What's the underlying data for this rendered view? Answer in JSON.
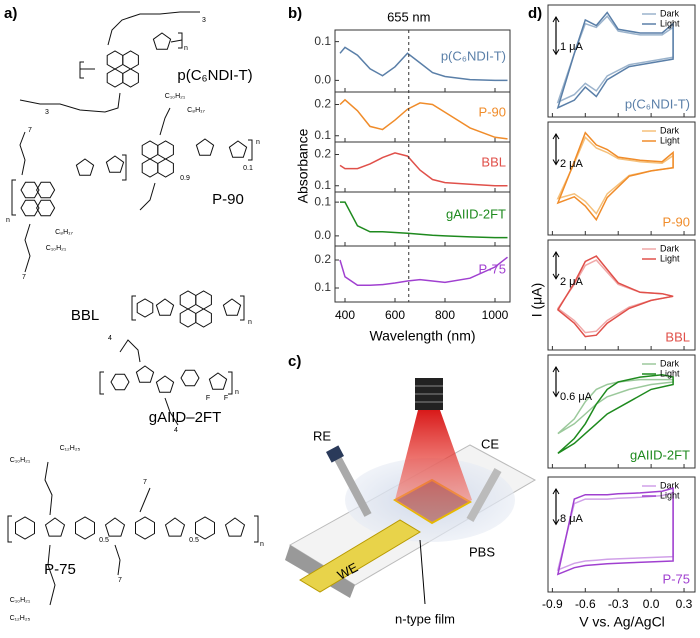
{
  "panel_labels": [
    "a)",
    "b)",
    "c)",
    "d)"
  ],
  "structures": [
    {
      "name": "p(C₆NDI-T)",
      "labels": [
        "3",
        "n",
        "3"
      ]
    },
    {
      "name": "P-90",
      "labels": [
        "7",
        "C₁₀H₂₁",
        "C₈H₁₇",
        "0.9",
        "0.1",
        "n",
        "C₈H₁₇",
        "C₁₀H₂₁",
        "7",
        "n"
      ]
    },
    {
      "name": "BBL",
      "labels": [
        "n"
      ]
    },
    {
      "name": "gAIID–2FT",
      "labels": [
        "4",
        "F",
        "F",
        "n",
        "4"
      ]
    },
    {
      "name": "P-75",
      "labels": [
        "C₁₀H₂₁",
        "C₁₂H₂₅",
        "7",
        "0.5",
        "0.5",
        "n",
        "C₁₀H₂₁",
        "C₁₂H₂₅",
        "7"
      ]
    }
  ],
  "schematic": {
    "labels": [
      "RE",
      "CE",
      "WE",
      "PBS",
      "n-type film"
    ]
  },
  "chart_data": [
    {
      "type": "line",
      "xlabel": "Wavelength (nm)",
      "ylabel": "Absorbance",
      "xlim": [
        360,
        1060
      ],
      "xticks": [
        400,
        600,
        800,
        1000
      ],
      "vline": {
        "value": 655,
        "label": "655 nm"
      },
      "x": [
        380,
        400,
        450,
        500,
        550,
        600,
        650,
        700,
        750,
        800,
        900,
        1000,
        1050
      ],
      "panels": [
        {
          "ylim": [
            -0.03,
            0.13
          ],
          "yticks": [
            {
              "value": 0,
              "label": "0.0"
            },
            0.1
          ],
          "series": [
            {
              "name": "p(C₆NDI-T)",
              "color": "#5a7fa8",
              "values": [
                0.07,
                0.085,
                0.065,
                0.03,
                0.012,
                0.035,
                0.07,
                0.045,
                0.02,
                0.01,
                0.002,
                0.0,
                0.0
              ]
            }
          ]
        },
        {
          "ylim": [
            0.08,
            0.24
          ],
          "yticks": [
            0.1,
            0.2
          ],
          "series": [
            {
              "name": "P-90",
              "color": "#f08c2a",
              "values": [
                0.2,
                0.215,
                0.18,
                0.13,
                0.12,
                0.15,
                0.185,
                0.205,
                0.2,
                0.175,
                0.125,
                0.095,
                0.09
              ]
            }
          ]
        },
        {
          "ylim": [
            0.08,
            0.24
          ],
          "yticks": [
            0.1,
            0.2
          ],
          "series": [
            {
              "name": "BBL",
              "color": "#e0504a",
              "values": [
                0.165,
                0.155,
                0.155,
                0.17,
                0.19,
                0.205,
                0.195,
                0.15,
                0.12,
                0.11,
                0.105,
                0.1,
                0.1
              ]
            }
          ]
        },
        {
          "ylim": [
            -0.03,
            0.13
          ],
          "yticks": [
            {
              "value": 0,
              "label": "0.0"
            },
            0.1
          ],
          "series": [
            {
              "name": "gAIID-2FT",
              "color": "#1e8a1e",
              "values": [
                0.1,
                0.1,
                0.03,
                0.012,
                0.012,
                0.01,
                0.008,
                0.005,
                0.002,
                0.0,
                -0.003,
                -0.005,
                -0.005
              ]
            }
          ]
        },
        {
          "ylim": [
            0.05,
            0.25
          ],
          "yticks": [
            0.1,
            0.2
          ],
          "series": [
            {
              "name": "P-75",
              "color": "#a040d0",
              "values": [
                0.2,
                0.14,
                0.11,
                0.11,
                0.112,
                0.118,
                0.125,
                0.13,
                0.125,
                0.12,
                0.135,
                0.175,
                0.21
              ]
            }
          ]
        }
      ]
    },
    {
      "type": "cv",
      "xlabel": "V vs. Ag/AgCl",
      "ylabel": "I (μA)",
      "xlim": [
        -0.94,
        0.4
      ],
      "xticks": [
        -0.9,
        -0.6,
        -0.3,
        {
          "value": 0,
          "label": "0.0"
        },
        0.3
      ],
      "panels": [
        {
          "name": "p(C₆NDI-T)",
          "color": "#5a7fa8",
          "ylim": [
            -1.9,
            1.1
          ],
          "scale_bar": {
            "value": 1,
            "label": "1 μA"
          },
          "series": [
            {
              "name": "Dark",
              "color": "#9bb3cc",
              "x": [
                0.2,
                0.0,
                -0.2,
                -0.4,
                -0.5,
                -0.6,
                -0.7,
                -0.85,
                -0.7,
                -0.6,
                -0.5,
                -0.4,
                -0.3,
                -0.1,
                0.1,
                0.2
              ],
              "values": [
                -0.3,
                -0.4,
                -0.5,
                -0.8,
                -1.2,
                -1.0,
                -1.3,
                -1.5,
                -0.2,
                0.6,
                0.5,
                0.8,
                0.4,
                0.3,
                0.3,
                0.5
              ]
            },
            {
              "name": "Light",
              "color": "#5a7fa8",
              "x": [
                0.2,
                0.0,
                -0.2,
                -0.4,
                -0.5,
                -0.6,
                -0.7,
                -0.85,
                -0.7,
                -0.6,
                -0.5,
                -0.4,
                -0.3,
                -0.1,
                0.1,
                0.2
              ],
              "values": [
                -0.35,
                -0.45,
                -0.55,
                -0.9,
                -1.35,
                -1.1,
                -1.45,
                -1.65,
                -0.2,
                0.7,
                0.55,
                0.9,
                0.45,
                0.35,
                0.35,
                0.6
              ]
            }
          ]
        },
        {
          "name": "P-90",
          "color": "#f08c2a",
          "ylim": [
            -4.2,
            3.2
          ],
          "scale_bar": {
            "value": 2,
            "label": "2 μA"
          },
          "series": [
            {
              "name": "Dark",
              "color": "#f5c07a",
              "x": [
                0.2,
                0.0,
                -0.2,
                -0.4,
                -0.5,
                -0.6,
                -0.7,
                -0.85,
                -0.7,
                -0.6,
                -0.5,
                -0.4,
                -0.3,
                -0.1,
                0.1,
                0.2
              ],
              "values": [
                0.2,
                0,
                -0.3,
                -1.5,
                -2.8,
                -2.0,
                -1.5,
                -1.8,
                0.5,
                2.2,
                1.5,
                1.2,
                0.8,
                0.6,
                0.5,
                1.0
              ]
            },
            {
              "name": "Light",
              "color": "#f08c2a",
              "x": [
                0.2,
                0.0,
                -0.2,
                -0.4,
                -0.5,
                -0.6,
                -0.7,
                -0.85,
                -0.7,
                -0.6,
                -0.5,
                -0.4,
                -0.3,
                -0.1,
                0.1,
                0.2
              ],
              "values": [
                0.2,
                0,
                -0.35,
                -1.75,
                -3.2,
                -2.3,
                -1.7,
                -2.1,
                0.6,
                2.5,
                1.7,
                1.4,
                0.9,
                0.7,
                0.6,
                1.2
              ]
            }
          ]
        },
        {
          "name": "BBL",
          "color": "#e0504a",
          "ylim": [
            -4,
            4.2
          ],
          "scale_bar": {
            "value": 2,
            "label": "2 μA"
          },
          "series": [
            {
              "name": "Dark",
              "color": "#f0a8a8",
              "x": [
                0.2,
                0.0,
                -0.2,
                -0.4,
                -0.5,
                -0.6,
                -0.7,
                -0.85,
                -0.7,
                -0.6,
                -0.5,
                -0.4,
                -0.3,
                -0.1,
                0.1,
                0.2
              ],
              "values": [
                0,
                -0.3,
                -0.8,
                -1.8,
                -2.6,
                -2.7,
                -1.8,
                -0.9,
                0.9,
                2.3,
                2.7,
                1.8,
                0.9,
                0.3,
                0.2,
                0
              ]
            },
            {
              "name": "Light",
              "color": "#e0504a",
              "x": [
                0.2,
                0.0,
                -0.2,
                -0.4,
                -0.5,
                -0.6,
                -0.7,
                -0.85,
                -0.7,
                -0.6,
                -0.5,
                -0.4,
                -0.3,
                -0.1,
                0.1,
                0.2
              ],
              "values": [
                0,
                -0.3,
                -0.9,
                -2.0,
                -2.9,
                -3.0,
                -2.0,
                -1.0,
                1.0,
                2.6,
                3.0,
                2.0,
                1.0,
                0.3,
                0.2,
                0
              ]
            }
          ]
        },
        {
          "name": "gAIID-2FT",
          "color": "#1e8a1e",
          "ylim": [
            -1.4,
            0.9
          ],
          "scale_bar": {
            "value": 0.6,
            "label": "0.6 μA"
          },
          "series": [
            {
              "name": "Dark",
              "color": "#9cc99c",
              "x": [
                0.2,
                0.0,
                -0.2,
                -0.4,
                -0.5,
                -0.6,
                -0.7,
                -0.85,
                -0.7,
                -0.6,
                -0.5,
                -0.4,
                -0.3,
                -0.1,
                0.1,
                0.2
              ],
              "values": [
                0.35,
                0.3,
                0.2,
                0.05,
                -0.1,
                -0.3,
                -0.5,
                -0.7,
                -0.4,
                -0.05,
                0.2,
                0.3,
                0.35,
                0.4,
                0.4,
                0.4
              ]
            },
            {
              "name": "Light",
              "color": "#1e8a1e",
              "x": [
                0.2,
                0.0,
                -0.2,
                -0.4,
                -0.5,
                -0.6,
                -0.7,
                -0.85,
                -0.7,
                -0.6,
                -0.5,
                -0.4,
                -0.3,
                -0.1,
                0.1,
                0.2
              ],
              "values": [
                0.3,
                0.2,
                -0.05,
                -0.3,
                -0.5,
                -0.7,
                -0.9,
                -1.1,
                -0.8,
                -0.5,
                -0.1,
                0.2,
                0.35,
                0.45,
                0.5,
                0.45
              ]
            }
          ]
        },
        {
          "name": "P-75",
          "color": "#a040d0",
          "ylim": [
            -14,
            12
          ],
          "scale_bar": {
            "value": 8,
            "label": "8 μA"
          },
          "series": [
            {
              "name": "Dark",
              "color": "#d0a0e8",
              "x": [
                0.2,
                0.0,
                -0.2,
                -0.4,
                -0.5,
                -0.6,
                -0.7,
                -0.85,
                -0.7,
                -0.6,
                -0.5,
                -0.4,
                -0.3,
                -0.1,
                0.1,
                0.2
              ],
              "values": [
                -6,
                -6.2,
                -6.4,
                -6.6,
                -6.8,
                -7,
                -7.5,
                -9,
                6,
                7,
                7,
                7,
                7.2,
                7.4,
                7.8,
                8.5
              ]
            },
            {
              "name": "Light",
              "color": "#a040d0",
              "x": [
                0.2,
                0.0,
                -0.2,
                -0.4,
                -0.5,
                -0.6,
                -0.7,
                -0.85,
                -0.7,
                -0.6,
                -0.5,
                -0.4,
                -0.3,
                -0.1,
                0.1,
                0.2
              ],
              "values": [
                -7,
                -7.2,
                -7.4,
                -7.6,
                -7.8,
                -8,
                -8.5,
                -10,
                7,
                8,
                8,
                8,
                8.2,
                8.4,
                8.8,
                9.5
              ]
            }
          ]
        }
      ]
    }
  ]
}
